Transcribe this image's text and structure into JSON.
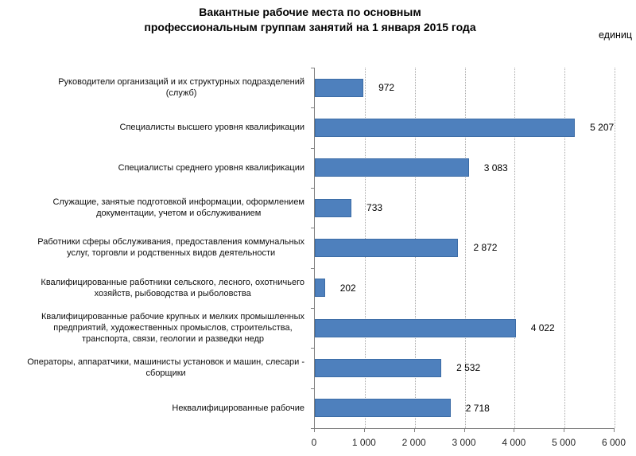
{
  "header": {
    "title_line1": "Вакантные рабочие места по основным",
    "title_line2": "профессиональным группам занятий на 1 января 2015 года",
    "units": "единиц"
  },
  "chart_data": {
    "type": "bar",
    "orientation": "horizontal",
    "title": "Вакантные рабочие места по основным профессиональным группам занятий на 1 января 2015 года",
    "units_label": "единиц",
    "xlabel": "",
    "ylabel": "",
    "xlim": [
      0,
      6000
    ],
    "x_ticks": [
      "0",
      "1 000",
      "2 000",
      "3 000",
      "4 000",
      "5 000",
      "6 000"
    ],
    "grid": "vertical-dotted",
    "legend": "none",
    "bar_color": "#4E80BD",
    "bar_border_color": "#3C6CA6",
    "categories": [
      {
        "label": "Руководители организаций и их структурных подразделений (служб)",
        "lines": [
          "Руководители организаций и их структурных подразделений",
          "(служб)"
        ]
      },
      {
        "label": "Специалисты высшего уровня квалификации",
        "lines": [
          "Специалисты высшего уровня квалификации"
        ]
      },
      {
        "label": "Специалисты среднего уровня квалификации",
        "lines": [
          "Специалисты среднего уровня квалификации"
        ]
      },
      {
        "label": "Служащие, занятые подготовкой информации, оформлением документации, учетом и обслуживанием",
        "lines": [
          "Служащие, занятые подготовкой информации, оформлением",
          "документации, учетом и обслуживанием"
        ]
      },
      {
        "label": "Работники сферы обслуживания, предоставления коммунальных услуг, торговли и родственных видов деятельности",
        "lines": [
          "Работники сферы обслуживания, предоставления коммунальных",
          "услуг, торговли и родственных видов деятельности"
        ]
      },
      {
        "label": "Квалифицированные работники сельского, лесного, охотничьего хозяйств, рыбоводства и рыболовства",
        "lines": [
          "Квалифицированные работники сельского, лесного, охотничьего",
          "хозяйств, рыбоводства и рыболовства"
        ]
      },
      {
        "label": "Квалифицированные рабочие крупных и мелких промышленных предприятий, художественных промыслов, строительства, транспорта, связи, геологии и разведки недр",
        "lines": [
          "Квалифицированные рабочие крупных и мелких промышленных",
          "предприятий, художественных промыслов, строительства,",
          "транспорта, связи, геологии и разведки недр"
        ]
      },
      {
        "label": "Операторы, аппаратчики, машинисты установок и машин, слесари - сборщики",
        "lines": [
          "Операторы, аппаратчики, машинисты установок и машин, слесари -",
          "сборщики"
        ]
      },
      {
        "label": "Неквалифицированные рабочие",
        "lines": [
          "Неквалифицированные рабочие"
        ]
      }
    ],
    "values": [
      972,
      5207,
      3083,
      733,
      2872,
      202,
      4022,
      2532,
      2718
    ],
    "value_labels": [
      "972",
      "5 207",
      "3 083",
      "733",
      "2 872",
      "202",
      "4 022",
      "2 532",
      "2 718"
    ]
  }
}
